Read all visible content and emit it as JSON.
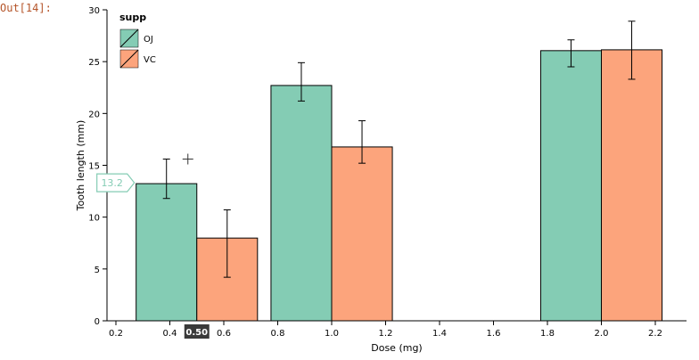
{
  "cell": {
    "prompt": "Out[14]:"
  },
  "colors": {
    "OJ": "#84ccb4",
    "VC": "#fca47c",
    "axis": "#000000",
    "tooltip_border": "#84ccb4",
    "tooltip_text": "#84ccb4",
    "hover_label_bg": "#3a3a3a",
    "hover_label_text": "#ffffff"
  },
  "chart_data": {
    "type": "bar",
    "xlabel": "Dose (mg)",
    "ylabel": "Tooth length (mm)",
    "xlim": [
      0.2,
      2.3
    ],
    "ylim": [
      0,
      30
    ],
    "x_ticks": [
      "0.2",
      "0.4",
      "0.6",
      "0.8",
      "1.0",
      "1.2",
      "1.4",
      "1.6",
      "1.8",
      "2.0",
      "2.2"
    ],
    "x_tick_values": [
      0.2,
      0.4,
      0.6,
      0.8,
      1.0,
      1.2,
      1.4,
      1.6,
      1.8,
      2.0,
      2.2
    ],
    "y_ticks": [
      "0",
      "5",
      "10",
      "15",
      "20",
      "25",
      "30"
    ],
    "y_tick_values": [
      0,
      5,
      10,
      15,
      20,
      25,
      30
    ],
    "grid": false,
    "legend": {
      "title": "supp",
      "position": "top-left",
      "entries": [
        "OJ",
        "VC"
      ]
    },
    "dose": [
      0.5,
      1.0,
      2.0
    ],
    "series": [
      {
        "name": "OJ",
        "values": [
          13.23,
          22.7,
          26.06
        ],
        "error_low": [
          11.8,
          21.2,
          24.5
        ],
        "error_high": [
          15.6,
          24.9,
          27.1
        ]
      },
      {
        "name": "VC",
        "values": [
          7.98,
          16.77,
          26.14
        ],
        "error_low": [
          4.2,
          15.2,
          23.3
        ],
        "error_high": [
          10.7,
          19.3,
          28.9
        ]
      }
    ],
    "tooltip": {
      "text": "13.2",
      "series": "OJ",
      "dose": 0.5
    },
    "hover_label": {
      "text": "0.50",
      "value": 0.5
    }
  }
}
